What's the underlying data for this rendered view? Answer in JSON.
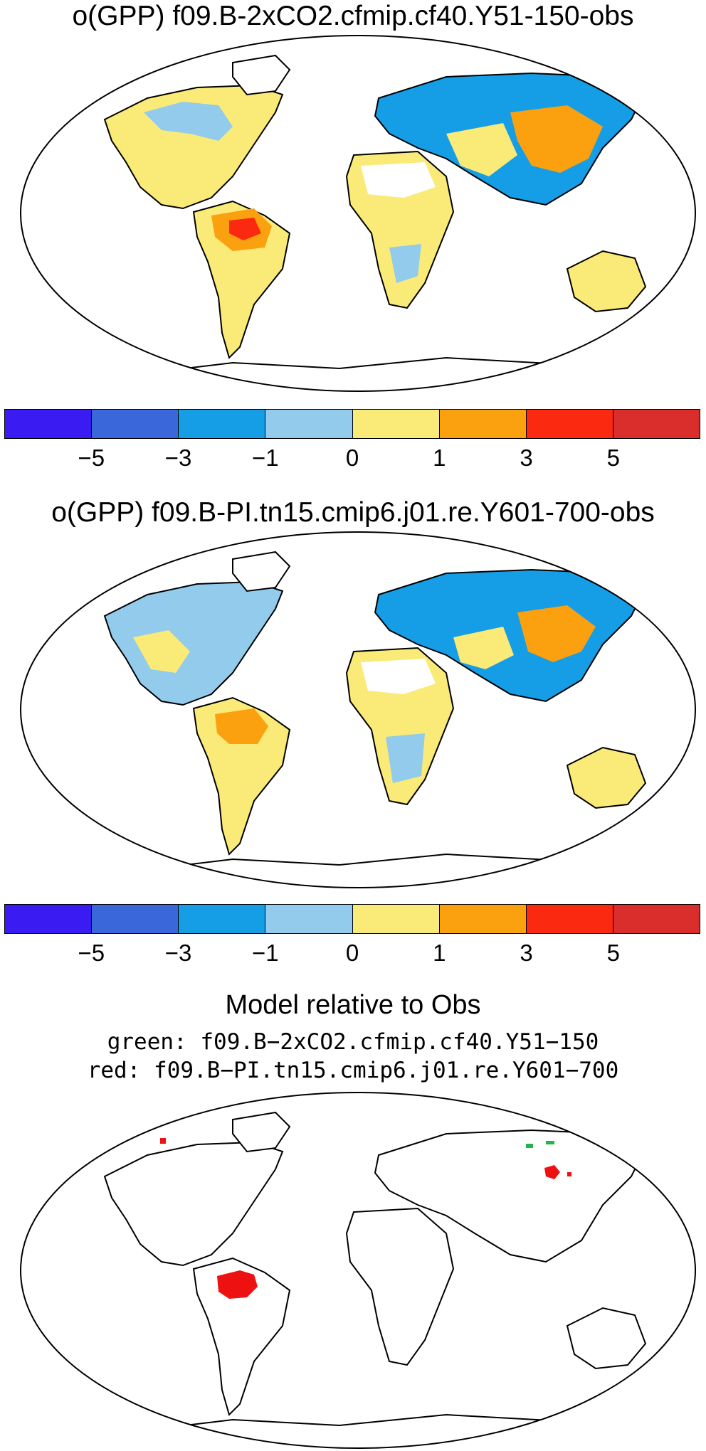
{
  "panel1": {
    "title": "o(GPP) f09.B-2xCO2.cfmip.cf40.Y51-150-obs"
  },
  "panel2": {
    "title": "o(GPP) f09.B-PI.tn15.cmip6.j01.re.Y601-700-obs"
  },
  "colorbar": {
    "colors": [
      "#3a1cf2",
      "#3a68db",
      "#159de6",
      "#92cbeb",
      "#faea78",
      "#fba00f",
      "#fb2910",
      "#d92e2b"
    ],
    "tick_labels": [
      "−5",
      "−3",
      "−1",
      "0",
      "1",
      "3",
      "5"
    ]
  },
  "panel3": {
    "title": "Model relative to Obs",
    "legend_green": "green: f09.B−2xCO2.cfmip.cf40.Y51−150",
    "legend_red": "red: f09.B−PI.tn15.cmip6.j01.re.Y601−700",
    "colors": {
      "green": "#22b34a",
      "red": "#ee1111"
    }
  }
}
